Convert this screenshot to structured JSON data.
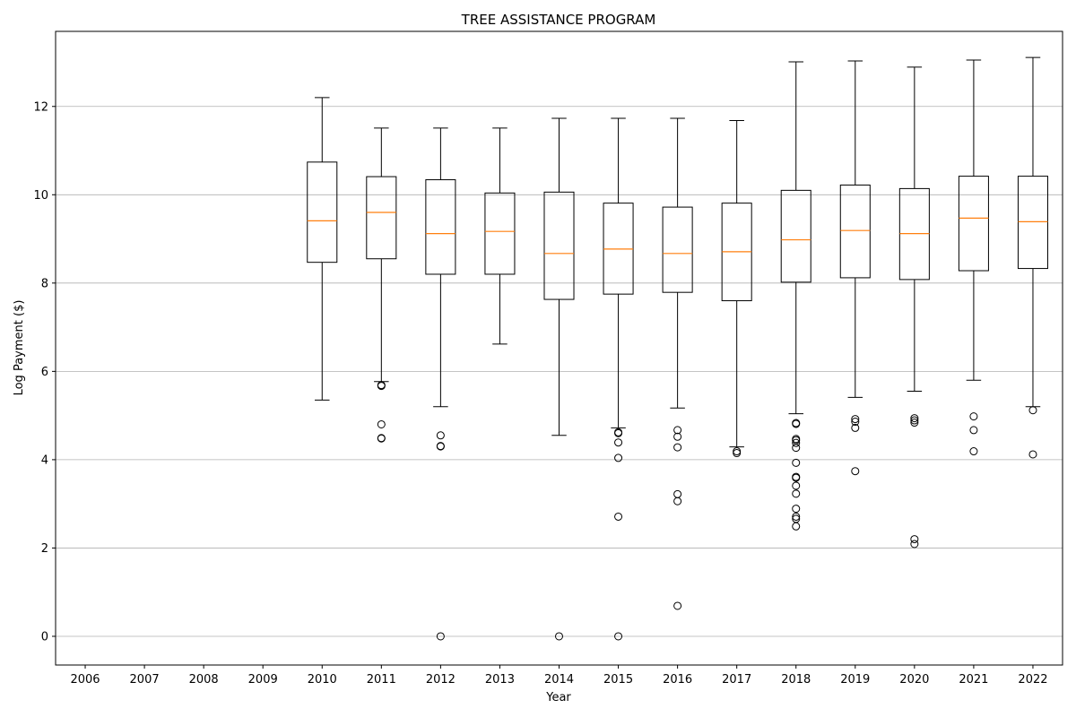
{
  "chart_data": {
    "type": "box",
    "title": "TREE ASSISTANCE PROGRAM",
    "xlabel": "Year",
    "ylabel": "Log Payment ($)",
    "ylim": [
      -0.65,
      13.7
    ],
    "yticks": [
      0,
      2,
      4,
      6,
      8,
      10,
      12
    ],
    "grid": "y",
    "categories": [
      "2006",
      "2007",
      "2008",
      "2009",
      "2010",
      "2011",
      "2012",
      "2013",
      "2014",
      "2015",
      "2016",
      "2017",
      "2018",
      "2019",
      "2020",
      "2021",
      "2022"
    ],
    "boxes": [
      {
        "year": "2010",
        "whislo": 5.35,
        "q1": 8.47,
        "med": 9.41,
        "q3": 10.74,
        "whishi": 12.2,
        "fliers": []
      },
      {
        "year": "2011",
        "whislo": 5.77,
        "q1": 8.55,
        "med": 9.6,
        "q3": 10.41,
        "whishi": 11.51,
        "fliers": [
          5.69,
          5.67,
          4.8,
          4.49,
          4.48
        ]
      },
      {
        "year": "2012",
        "whislo": 5.2,
        "q1": 8.2,
        "med": 9.12,
        "q3": 10.34,
        "whishi": 11.51,
        "fliers": [
          4.55,
          4.31,
          4.3,
          0.0
        ]
      },
      {
        "year": "2013",
        "whislo": 6.62,
        "q1": 8.2,
        "med": 9.17,
        "q3": 10.04,
        "whishi": 11.51,
        "fliers": []
      },
      {
        "year": "2014",
        "whislo": 4.55,
        "q1": 7.63,
        "med": 8.67,
        "q3": 10.06,
        "whishi": 11.73,
        "fliers": [
          0.0
        ]
      },
      {
        "year": "2015",
        "whislo": 4.72,
        "q1": 7.75,
        "med": 8.77,
        "q3": 9.81,
        "whishi": 11.73,
        "fliers": [
          4.62,
          4.6,
          4.39,
          4.04,
          2.71,
          0.0
        ]
      },
      {
        "year": "2016",
        "whislo": 5.17,
        "q1": 7.79,
        "med": 8.67,
        "q3": 9.72,
        "whishi": 11.73,
        "fliers": [
          4.67,
          4.52,
          4.28,
          3.22,
          3.06,
          0.69
        ]
      },
      {
        "year": "2017",
        "whislo": 4.29,
        "q1": 7.6,
        "med": 8.71,
        "q3": 9.81,
        "whishi": 11.68,
        "fliers": [
          4.19,
          4.15
        ]
      },
      {
        "year": "2018",
        "whislo": 5.04,
        "q1": 8.02,
        "med": 8.98,
        "q3": 10.1,
        "whishi": 13.01,
        "fliers": [
          4.83,
          4.81,
          4.47,
          4.44,
          4.38,
          4.27,
          3.93,
          3.61,
          3.59,
          3.41,
          3.23,
          2.89,
          2.71,
          2.66,
          2.49
        ]
      },
      {
        "year": "2019",
        "whislo": 5.41,
        "q1": 8.12,
        "med": 9.19,
        "q3": 10.22,
        "whishi": 13.03,
        "fliers": [
          4.92,
          4.86,
          4.72,
          3.74
        ]
      },
      {
        "year": "2020",
        "whislo": 5.55,
        "q1": 8.08,
        "med": 9.12,
        "q3": 10.14,
        "whishi": 12.89,
        "fliers": [
          4.94,
          4.89,
          4.84,
          2.2,
          2.09
        ]
      },
      {
        "year": "2021",
        "whislo": 5.8,
        "q1": 8.28,
        "med": 9.47,
        "q3": 10.42,
        "whishi": 13.05,
        "fliers": [
          4.98,
          4.67,
          4.19
        ]
      },
      {
        "year": "2022",
        "whislo": 5.2,
        "q1": 8.33,
        "med": 9.39,
        "q3": 10.42,
        "whishi": 13.11,
        "fliers": [
          5.12,
          4.12
        ]
      }
    ],
    "colors": {
      "box": "#000000",
      "median": "#ff7f0e",
      "grid": "#b0b0b0",
      "flier": "#000000"
    }
  }
}
